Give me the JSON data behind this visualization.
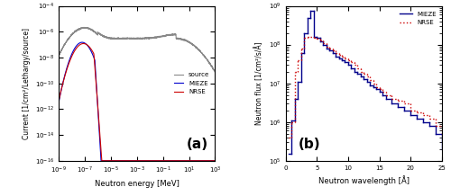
{
  "fig_width": 5.0,
  "fig_height": 2.18,
  "dpi": 100,
  "panel_a": {
    "xlabel": "Neutron energy [MeV]",
    "ylabel": "Current [1/cm²/Lethargy/source]",
    "xlim_log": [
      -9,
      3
    ],
    "ylim_log": [
      -16,
      -5
    ],
    "label_a": "(a)",
    "legend_source": "source",
    "legend_mieze": "MIEZE",
    "legend_nrse": "NRSE",
    "color_source": "#888888",
    "color_mieze": "#0000cc",
    "color_nrse": "#cc0000"
  },
  "panel_b": {
    "xlabel": "Neutron wavelength [Å]",
    "ylabel": "Neutron flux [1/cm²/s/Å]",
    "xlim": [
      0,
      25
    ],
    "ylim_log": [
      5,
      9
    ],
    "label_b": "(b)",
    "legend_mieze": "MIEZE",
    "legend_nrse": "NRSE",
    "color_mieze": "#00008B",
    "color_nrse": "#cc0000"
  }
}
